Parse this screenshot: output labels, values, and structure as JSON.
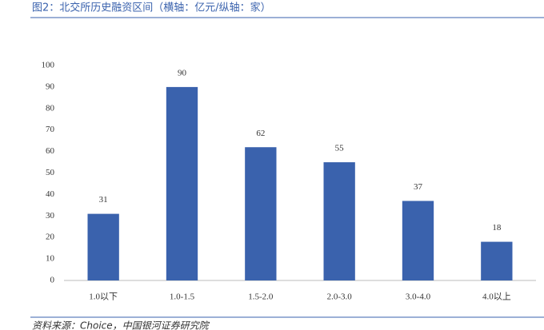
{
  "chart_data": {
    "type": "bar",
    "title": "图2：北交所历史融资区间（横轴：亿元/纵轴：家）",
    "categories": [
      "1.0以下",
      "1.0-1.5",
      "1.5-2.0",
      "2.0-3.0",
      "3.0-4.0",
      "4.0以上"
    ],
    "values": [
      31,
      90,
      62,
      55,
      37,
      18
    ],
    "color": "#3a62ad",
    "ylim": [
      0,
      100
    ],
    "yticks": [
      0,
      10,
      20,
      30,
      40,
      50,
      60,
      70,
      80,
      90,
      100
    ],
    "grid": false,
    "source": "资料来源：Choice，中国银河证券研究院"
  }
}
